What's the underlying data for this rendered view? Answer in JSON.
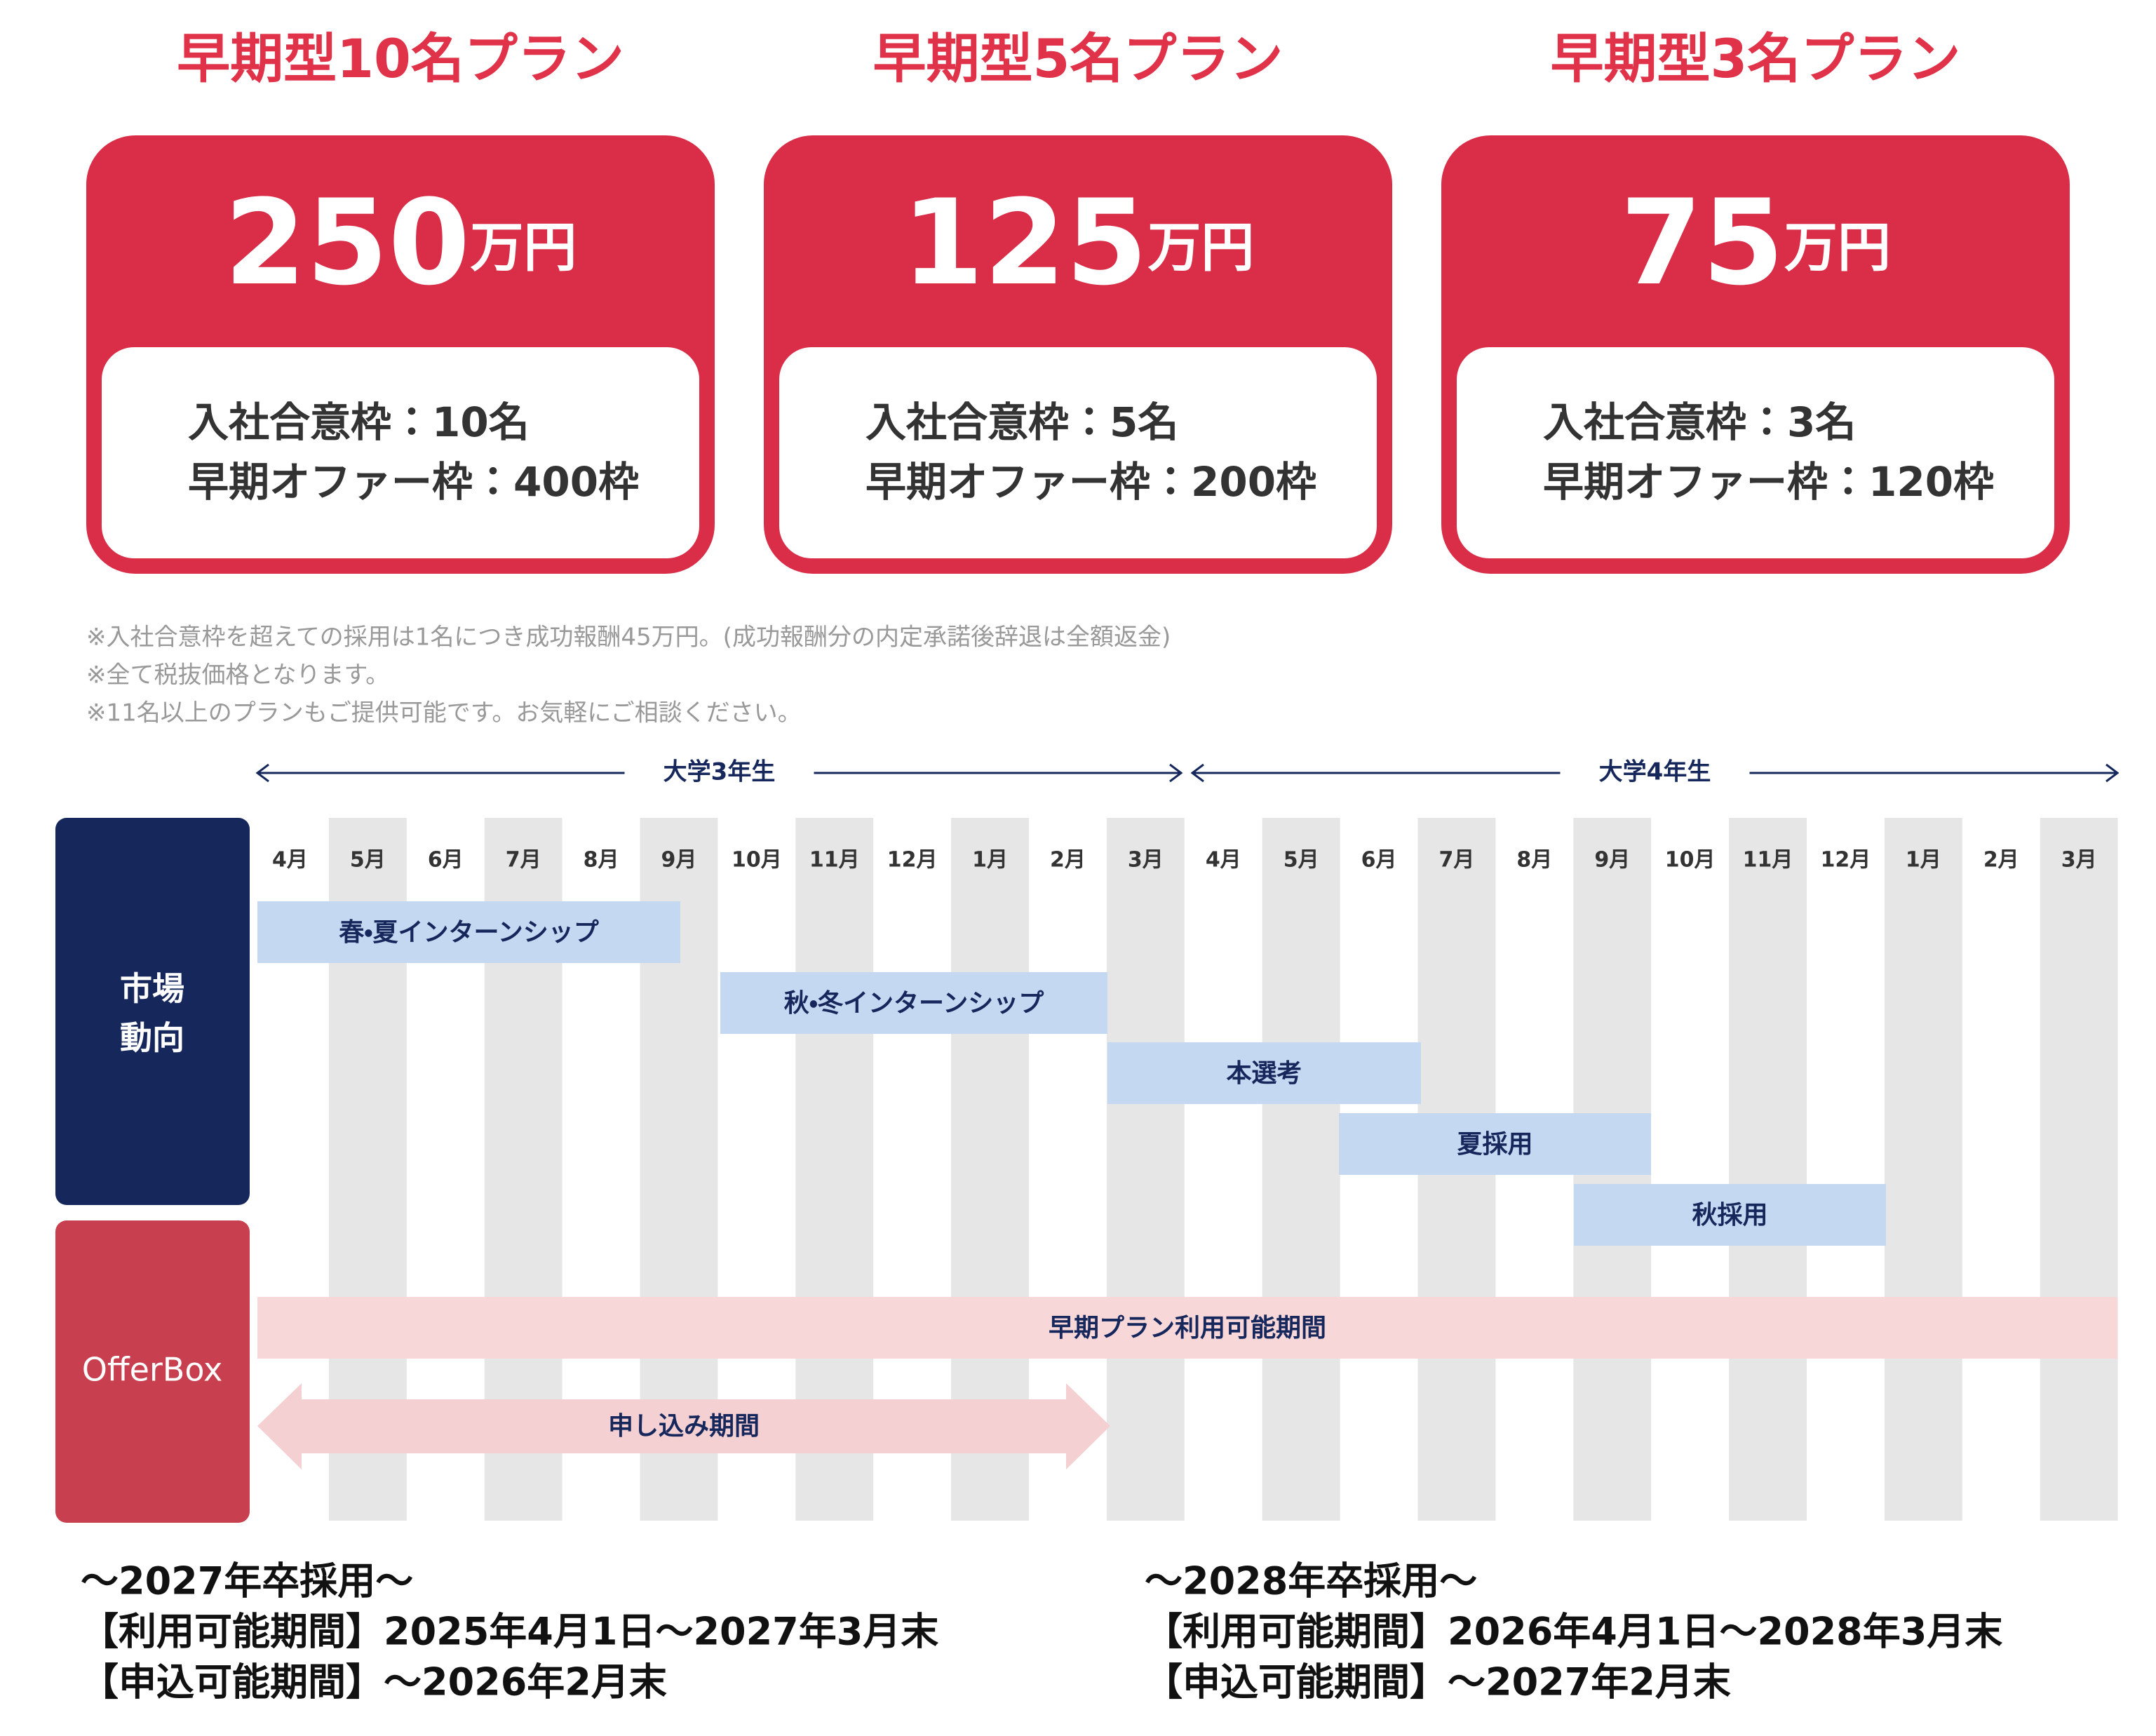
{
  "plans": [
    {
      "title": "早期型10名プラン",
      "price": "250",
      "unit": "万円",
      "quota": "入社合意枠：10名",
      "offers": "早期オファー枠：400枠"
    },
    {
      "title": "早期型5名プラン",
      "price": "125",
      "unit": "万円",
      "quota": "入社合意枠：5名",
      "offers": "早期オファー枠：200枠"
    },
    {
      "title": "早期型3名プラン",
      "price": "75",
      "unit": "万円",
      "quota": "入社合意枠：3名",
      "offers": "早期オファー枠：120枠"
    }
  ],
  "notes": [
    "※入社合意枠を超えての採用は1名につき成功報酬45万円。(成功報酬分の内定承諾後辞退は全額返金)",
    "※全て税抜価格となります。",
    "※11名以上のプランもご提供可能です。お気軽にご相談ください。"
  ],
  "timeline": {
    "years": [
      "大学3年生",
      "大学4年生"
    ],
    "months": [
      "4月",
      "5月",
      "6月",
      "7月",
      "8月",
      "9月",
      "10月",
      "11月",
      "12月",
      "1月",
      "2月",
      "3月",
      "4月",
      "5月",
      "6月",
      "7月",
      "8月",
      "9月",
      "10月",
      "11月",
      "12月",
      "1月",
      "2月",
      "3月"
    ],
    "market_label": [
      "市場",
      "動向"
    ],
    "offerbox_label": "OfferBox",
    "market_bars": [
      "春・夏インターンシップ",
      "秋・冬インターンシップ",
      "本選考",
      "夏採用",
      "秋採用"
    ],
    "offerbox_bars": [
      "早期プラン利用可能期間",
      "申し込み期間"
    ]
  },
  "footer": [
    [
      "～2027年卒採用～",
      "【利用可能期間】2025年4月1日～2027年3月末",
      "【申込可能期間】～2026年2月末"
    ],
    [
      "～2028年卒採用～",
      "【利用可能期間】2026年4月1日～2028年3月末",
      "【申込可能期間】～2027年2月末"
    ]
  ]
}
